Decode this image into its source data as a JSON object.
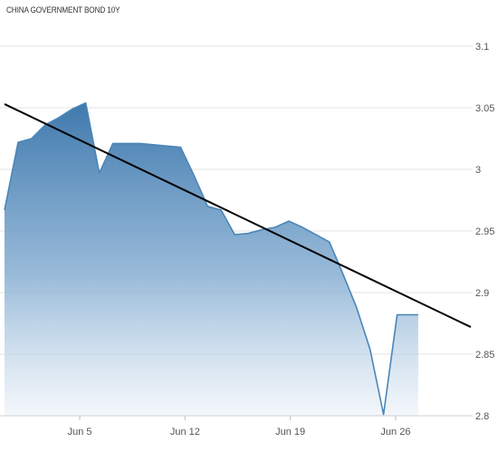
{
  "chart_data": {
    "type": "area",
    "title": "CHINA GOVERNMENT BOND 10Y",
    "xlabel": "",
    "ylabel": "",
    "x_tick_labels": [
      "Jun 5",
      "Jun 12",
      "Jun 19",
      "Jun 26"
    ],
    "y_tick_labels": [
      "3.1",
      "3.05",
      "3",
      "2.95",
      "2.9",
      "2.85",
      "2.8"
    ],
    "y_ticks": [
      3.1,
      3.05,
      3.0,
      2.95,
      2.9,
      2.85,
      2.8
    ],
    "ylim": [
      2.8,
      3.1
    ],
    "x_tick_positions": [
      5,
      12,
      19,
      26
    ],
    "xlim": [
      0,
      31
    ],
    "y_axis_side": "right",
    "grid": "horizontal",
    "series": [
      {
        "x": [
          0,
          0.9,
          1.8,
          2.7,
          3.6,
          4.5,
          5.4,
          6.3,
          7.2,
          8.1,
          9.0,
          9.9,
          10.8,
          11.7,
          12.6,
          13.5,
          14.4,
          15.3,
          16.2,
          17.1,
          18.0,
          18.9,
          19.8,
          20.7,
          21.6,
          22.5,
          23.4,
          24.3,
          25.2,
          26.1,
          27.0,
          27.5
        ],
        "values": [
          2.967,
          3.022,
          3.025,
          3.036,
          3.042,
          3.049,
          3.054,
          2.997,
          3.021,
          3.021,
          3.021,
          3.02,
          3.019,
          3.018,
          2.995,
          2.97,
          2.967,
          2.947,
          2.948,
          2.951,
          2.953,
          2.958,
          2.953,
          2.947,
          2.941,
          2.915,
          2.888,
          2.854,
          2.801,
          2.882,
          2.882,
          2.882
        ],
        "color": "#4a86b8"
      }
    ],
    "trendline": {
      "start": [
        0,
        3.053
      ],
      "end": [
        31,
        2.872
      ],
      "color": "#000000"
    }
  }
}
